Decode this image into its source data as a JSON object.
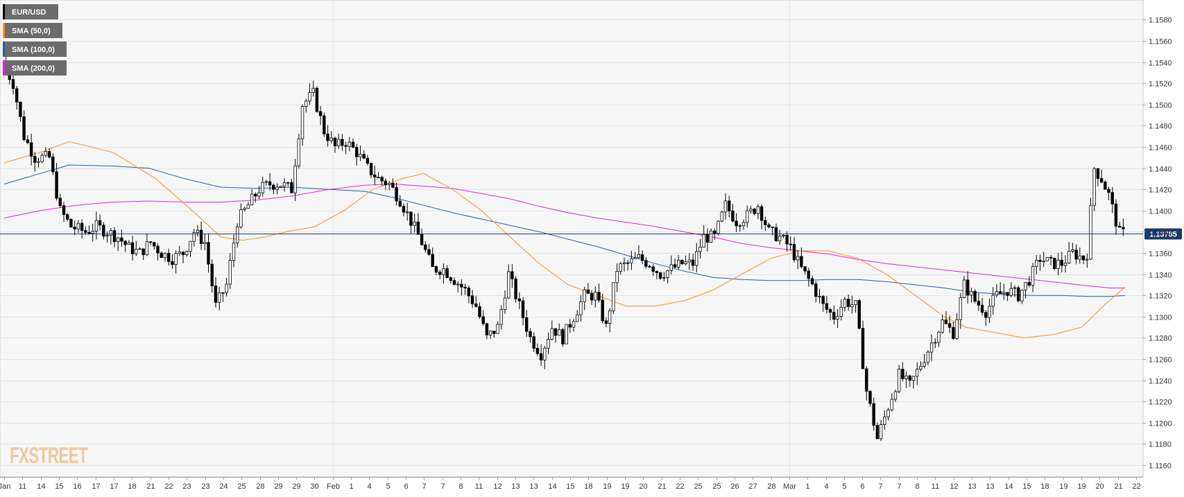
{
  "chart_data": {
    "type": "candlestick",
    "symbol": "EUR/USD",
    "last_price": "1.13785",
    "ylim": [
      1.115,
      1.1595
    ],
    "y_ticks": [
      "1.1160",
      "1.1180",
      "1.1200",
      "1.1220",
      "1.1240",
      "1.1260",
      "1.1280",
      "1.1300",
      "1.1320",
      "1.1340",
      "1.1360",
      "1.1380",
      "1.1400",
      "1.1420",
      "1.1440",
      "1.1460",
      "1.1480",
      "1.1500",
      "1.1520",
      "1.1540",
      "1.1560",
      "1.1580"
    ],
    "x_ticks": [
      "Jan",
      "11",
      "14",
      "15",
      "16",
      "17",
      "17",
      "18",
      "21",
      "22",
      "23",
      "23",
      "24",
      "25",
      "28",
      "29",
      "29",
      "30",
      "Feb",
      "1",
      "4",
      "5",
      "6",
      "7",
      "7",
      "8",
      "11",
      "12",
      "13",
      "13",
      "14",
      "15",
      "18",
      "19",
      "19",
      "20",
      "21",
      "22",
      "25",
      "25",
      "26",
      "27",
      "28",
      "Mar",
      "1",
      "4",
      "5",
      "6",
      "7",
      "7",
      "8",
      "11",
      "12",
      "13",
      "13",
      "14",
      "15",
      "18",
      "19",
      "19",
      "20",
      "21",
      "22"
    ],
    "legend": [
      {
        "label": "EUR/USD",
        "color": "#000000"
      },
      {
        "label": "SMA (50,0)",
        "color": "#f7931e"
      },
      {
        "label": "SMA (100,0)",
        "color": "#1f5fa8"
      },
      {
        "label": "SMA (200,0)",
        "color": "#e61ee6"
      }
    ],
    "legend_position": "top-left",
    "grid": true,
    "colors": {
      "up": "#ffffff",
      "down": "#000000",
      "price_line": "#1a3a6b",
      "price_label_bg": "#1a3a6b"
    },
    "price_path": [
      [
        0,
        1.154
      ],
      [
        3,
        1.152
      ],
      [
        6,
        1.147
      ],
      [
        9,
        1.145
      ],
      [
        13,
        1.145
      ],
      [
        16,
        1.14
      ],
      [
        19,
        1.1385
      ],
      [
        23,
        1.138
      ],
      [
        26,
        1.1385
      ],
      [
        29,
        1.138
      ],
      [
        32,
        1.1375
      ],
      [
        35,
        1.1365
      ],
      [
        38,
        1.136
      ],
      [
        41,
        1.137
      ],
      [
        44,
        1.136
      ],
      [
        47,
        1.1355
      ],
      [
        50,
        1.136
      ],
      [
        53,
        1.138
      ],
      [
        56,
        1.137
      ],
      [
        59,
        1.131
      ],
      [
        62,
        1.133
      ],
      [
        65,
        1.139
      ],
      [
        68,
        1.1405
      ],
      [
        71,
        1.142
      ],
      [
        74,
        1.1425
      ],
      [
        77,
        1.1425
      ],
      [
        80,
        1.142
      ],
      [
        83,
        1.15
      ],
      [
        86,
        1.151
      ],
      [
        89,
        1.1475
      ],
      [
        92,
        1.146
      ],
      [
        95,
        1.1465
      ],
      [
        98,
        1.1455
      ],
      [
        101,
        1.144
      ],
      [
        104,
        1.143
      ],
      [
        107,
        1.1425
      ],
      [
        110,
        1.141
      ],
      [
        113,
        1.139
      ],
      [
        116,
        1.137
      ],
      [
        119,
        1.1345
      ],
      [
        122,
        1.1345
      ],
      [
        125,
        1.1335
      ],
      [
        128,
        1.1325
      ],
      [
        131,
        1.131
      ],
      [
        134,
        1.128
      ],
      [
        137,
        1.129
      ],
      [
        140,
        1.134
      ],
      [
        143,
        1.131
      ],
      [
        146,
        1.128
      ],
      [
        149,
        1.1265
      ],
      [
        152,
        1.129
      ],
      [
        155,
        1.128
      ],
      [
        158,
        1.13
      ],
      [
        161,
        1.132
      ],
      [
        164,
        1.132
      ],
      [
        167,
        1.129
      ],
      [
        170,
        1.1345
      ],
      [
        173,
        1.135
      ],
      [
        176,
        1.1355
      ],
      [
        179,
        1.135
      ],
      [
        182,
        1.134
      ],
      [
        185,
        1.1345
      ],
      [
        188,
        1.135
      ],
      [
        191,
        1.135
      ],
      [
        194,
        1.1375
      ],
      [
        197,
        1.1375
      ],
      [
        200,
        1.1405
      ],
      [
        203,
        1.139
      ],
      [
        206,
        1.1395
      ],
      [
        209,
        1.1405
      ],
      [
        212,
        1.138
      ],
      [
        215,
        1.1375
      ],
      [
        218,
        1.1365
      ],
      [
        221,
        1.1345
      ],
      [
        224,
        1.133
      ],
      [
        227,
        1.131
      ],
      [
        230,
        1.13
      ],
      [
        233,
        1.1315
      ],
      [
        236,
        1.131
      ],
      [
        239,
        1.123
      ],
      [
        242,
        1.1185
      ],
      [
        245,
        1.1215
      ],
      [
        248,
        1.1245
      ],
      [
        251,
        1.1235
      ],
      [
        254,
        1.1255
      ],
      [
        257,
        1.1275
      ],
      [
        260,
        1.1295
      ],
      [
        263,
        1.1285
      ],
      [
        266,
        1.133
      ],
      [
        269,
        1.1315
      ],
      [
        272,
        1.1305
      ],
      [
        275,
        1.132
      ],
      [
        278,
        1.1325
      ],
      [
        281,
        1.132
      ],
      [
        284,
        1.1335
      ],
      [
        287,
        1.1355
      ],
      [
        290,
        1.135
      ],
      [
        293,
        1.135
      ],
      [
        296,
        1.136
      ],
      [
        299,
        1.1355
      ],
      [
        300,
        1.136
      ],
      [
        302,
        1.144
      ],
      [
        304,
        1.143
      ],
      [
        306,
        1.1415
      ],
      [
        308,
        1.139
      ],
      [
        309,
        1.13785
      ]
    ],
    "sma50": [
      [
        0,
        1.1445
      ],
      [
        10,
        1.1455
      ],
      [
        18,
        1.1465
      ],
      [
        30,
        1.1455
      ],
      [
        42,
        1.143
      ],
      [
        52,
        1.14
      ],
      [
        60,
        1.1375
      ],
      [
        66,
        1.1372
      ],
      [
        72,
        1.1375
      ],
      [
        78,
        1.138
      ],
      [
        86,
        1.1385
      ],
      [
        94,
        1.14
      ],
      [
        102,
        1.142
      ],
      [
        110,
        1.143
      ],
      [
        116,
        1.1435
      ],
      [
        124,
        1.142
      ],
      [
        132,
        1.14
      ],
      [
        140,
        1.1375
      ],
      [
        148,
        1.135
      ],
      [
        156,
        1.133
      ],
      [
        164,
        1.132
      ],
      [
        172,
        1.131
      ],
      [
        180,
        1.131
      ],
      [
        188,
        1.1315
      ],
      [
        196,
        1.1325
      ],
      [
        204,
        1.134
      ],
      [
        212,
        1.1355
      ],
      [
        220,
        1.1362
      ],
      [
        228,
        1.1362
      ],
      [
        236,
        1.1355
      ],
      [
        244,
        1.134
      ],
      [
        252,
        1.132
      ],
      [
        260,
        1.13
      ],
      [
        266,
        1.129
      ],
      [
        274,
        1.1285
      ],
      [
        282,
        1.128
      ],
      [
        290,
        1.1283
      ],
      [
        298,
        1.129
      ],
      [
        304,
        1.131
      ],
      [
        310,
        1.1328
      ]
    ],
    "sma100": [
      [
        0,
        1.1425
      ],
      [
        10,
        1.1435
      ],
      [
        18,
        1.1443
      ],
      [
        30,
        1.1442
      ],
      [
        40,
        1.144
      ],
      [
        50,
        1.143
      ],
      [
        60,
        1.1422
      ],
      [
        70,
        1.1421
      ],
      [
        80,
        1.1422
      ],
      [
        90,
        1.142
      ],
      [
        100,
        1.1418
      ],
      [
        108,
        1.1412
      ],
      [
        116,
        1.1405
      ],
      [
        124,
        1.1398
      ],
      [
        132,
        1.1392
      ],
      [
        140,
        1.1386
      ],
      [
        148,
        1.138
      ],
      [
        156,
        1.1373
      ],
      [
        164,
        1.1366
      ],
      [
        172,
        1.1358
      ],
      [
        180,
        1.135
      ],
      [
        188,
        1.1343
      ],
      [
        196,
        1.1337
      ],
      [
        204,
        1.1335
      ],
      [
        212,
        1.1334
      ],
      [
        220,
        1.1334
      ],
      [
        228,
        1.1335
      ],
      [
        236,
        1.1335
      ],
      [
        244,
        1.1333
      ],
      [
        252,
        1.133
      ],
      [
        260,
        1.1327
      ],
      [
        268,
        1.1323
      ],
      [
        276,
        1.1321
      ],
      [
        284,
        1.132
      ],
      [
        292,
        1.132
      ],
      [
        300,
        1.1319
      ],
      [
        306,
        1.1319
      ],
      [
        310,
        1.132
      ]
    ],
    "sma200": [
      [
        0,
        1.1393
      ],
      [
        10,
        1.14
      ],
      [
        20,
        1.1405
      ],
      [
        30,
        1.1408
      ],
      [
        40,
        1.1409
      ],
      [
        50,
        1.1408
      ],
      [
        60,
        1.1408
      ],
      [
        70,
        1.141
      ],
      [
        80,
        1.1414
      ],
      [
        90,
        1.142
      ],
      [
        100,
        1.1424
      ],
      [
        108,
        1.1425
      ],
      [
        116,
        1.1423
      ],
      [
        124,
        1.1421
      ],
      [
        132,
        1.1416
      ],
      [
        140,
        1.1411
      ],
      [
        148,
        1.1404
      ],
      [
        156,
        1.1398
      ],
      [
        164,
        1.1393
      ],
      [
        172,
        1.1389
      ],
      [
        180,
        1.1385
      ],
      [
        188,
        1.138
      ],
      [
        196,
        1.1375
      ],
      [
        204,
        1.1369
      ],
      [
        212,
        1.1365
      ],
      [
        220,
        1.1362
      ],
      [
        228,
        1.1359
      ],
      [
        236,
        1.1354
      ],
      [
        244,
        1.135
      ],
      [
        252,
        1.1347
      ],
      [
        260,
        1.1344
      ],
      [
        268,
        1.1341
      ],
      [
        276,
        1.1338
      ],
      [
        284,
        1.1335
      ],
      [
        292,
        1.1332
      ],
      [
        300,
        1.1329
      ],
      [
        306,
        1.1327
      ],
      [
        310,
        1.1327
      ]
    ]
  },
  "watermark": {
    "brand": "FXSTREET"
  }
}
